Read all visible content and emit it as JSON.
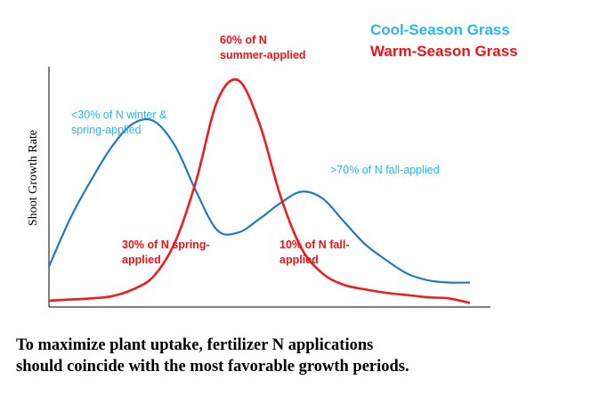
{
  "chart_data": {
    "type": "line",
    "ylabel": "Shoot Growth Rate",
    "xlabel": "",
    "legend": [
      {
        "name": "Cool-Season Grass",
        "color": "#2bb5e8"
      },
      {
        "name": "Warm-Season Grass",
        "color": "#e8141a"
      }
    ],
    "legend_position": "top-right",
    "x": [
      0,
      5,
      10,
      15,
      20,
      25,
      30,
      35,
      40,
      45,
      50,
      55,
      60,
      65,
      70,
      75,
      80,
      85,
      90,
      95,
      100
    ],
    "series": [
      {
        "name": "Cool-Season Grass",
        "color": "#1f78c8",
        "values": [
          17,
          38,
          55,
          70,
          80,
          81,
          70,
          50,
          33,
          32,
          38,
          45,
          50,
          47,
          37,
          27,
          20,
          14,
          11,
          10,
          10
        ]
      },
      {
        "name": "Warm-Season Grass",
        "color": "#ee1c1c",
        "values": [
          2,
          2.5,
          3,
          4,
          7,
          13,
          28,
          55,
          90,
          99,
          80,
          48,
          25,
          14,
          9,
          7,
          5.5,
          4.5,
          3.5,
          3,
          1
        ]
      }
    ],
    "ylim": [
      0,
      105
    ],
    "xlim": [
      0,
      100
    ],
    "annotations": [
      {
        "series": "Cool-Season Grass",
        "lines": [
          "<30% of N winter &",
          "spring-applied"
        ]
      },
      {
        "series": "Cool-Season Grass",
        "lines": [
          ">70% of N fall-applied"
        ]
      },
      {
        "series": "Warm-Season Grass",
        "lines": [
          "60% of N",
          "summer-applied"
        ]
      },
      {
        "series": "Warm-Season Grass",
        "lines": [
          "30% of N spring-",
          "applied"
        ]
      },
      {
        "series": "Warm-Season Grass",
        "lines": [
          "10% of N fall-",
          "applied"
        ]
      }
    ]
  },
  "caption": {
    "line1": "To maximize plant uptake, fertilizer N applications",
    "line2": "should coincide with the most favorable growth periods."
  }
}
